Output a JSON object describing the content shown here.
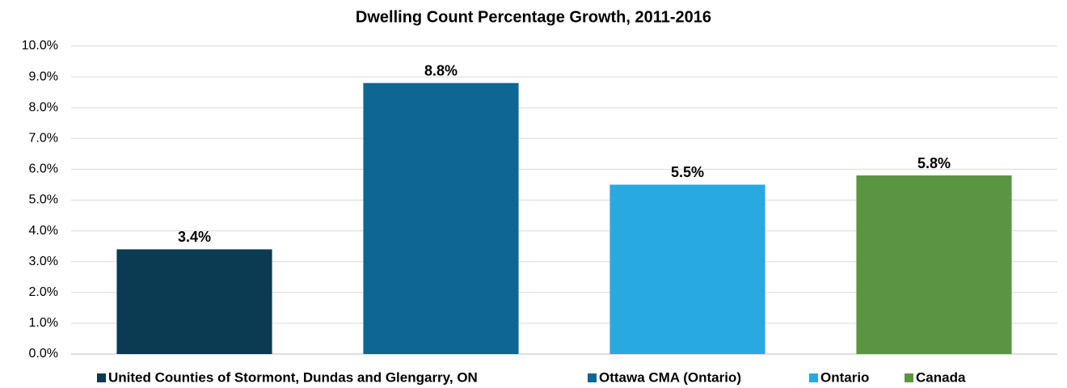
{
  "chart_data": {
    "type": "bar",
    "title": "Dwelling Count Percentage Growth, 2011-2016",
    "categories": [
      "United Counties of Stormont, Dundas and Glengarry, ON",
      "Ottawa CMA (Ontario)",
      "Ontario",
      "Canada"
    ],
    "values": [
      3.4,
      8.8,
      5.5,
      5.8
    ],
    "value_labels": [
      "3.4%",
      "8.8%",
      "5.5%",
      "5.8%"
    ],
    "colors": [
      "#0b3a53",
      "#0e6694",
      "#28a9e0",
      "#5a9641"
    ],
    "ylim": [
      0,
      10
    ],
    "yticks": [
      {
        "value": 0,
        "label": "0.0%"
      },
      {
        "value": 1,
        "label": "1.0%"
      },
      {
        "value": 2,
        "label": "2.0%"
      },
      {
        "value": 3,
        "label": "3.0%"
      },
      {
        "value": 4,
        "label": "4.0%"
      },
      {
        "value": 5,
        "label": "5.0%"
      },
      {
        "value": 6,
        "label": "6.0%"
      },
      {
        "value": 7,
        "label": "7.0%"
      },
      {
        "value": 8,
        "label": "8.0%"
      },
      {
        "value": 9,
        "label": "9.0%"
      },
      {
        "value": 10,
        "label": "10.0%"
      }
    ],
    "grid": true,
    "legend": "bottom"
  }
}
